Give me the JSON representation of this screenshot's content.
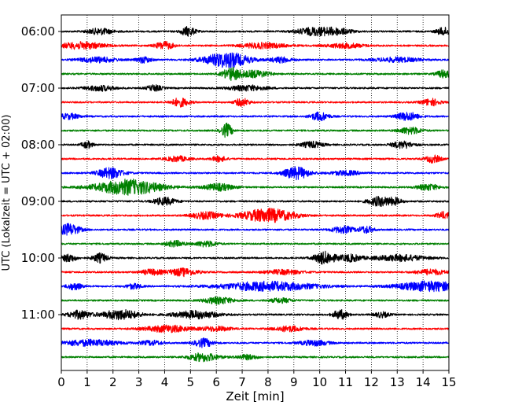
{
  "chart_data": {
    "type": "line",
    "title": "",
    "xlabel": "Zeit  [min]",
    "ylabel": "UTC (Lokalzeit = UTC + 02:00)",
    "xlim": [
      0,
      15
    ],
    "xticks": [
      0,
      1,
      2,
      3,
      4,
      5,
      6,
      7,
      8,
      9,
      10,
      11,
      12,
      13,
      14,
      15
    ],
    "xtick_labels": [
      "0",
      "1",
      "2",
      "3",
      "4",
      "5",
      "6",
      "7",
      "8",
      "9",
      "10",
      "11",
      "12",
      "13",
      "14",
      "15"
    ],
    "grid": "vertical dotted lines at each minute",
    "ytick_labels": [
      "06:00",
      "07:00",
      "08:00",
      "09:00",
      "10:00",
      "11:00"
    ],
    "trace_interval_min": 15,
    "trace_colors": [
      "#000000",
      "#ff0000",
      "#0000ff",
      "#008000"
    ],
    "traces": [
      {
        "start": "06:00",
        "color": "#000000",
        "bursts": [
          [
            1.5,
            0.4,
            0.35
          ],
          [
            4.9,
            0.6,
            0.2
          ],
          [
            9.8,
            0.5,
            0.5
          ],
          [
            10.7,
            0.35,
            0.4
          ],
          [
            14.8,
            0.5,
            0.2
          ]
        ]
      },
      {
        "start": "06:15",
        "color": "#ff0000",
        "bursts": [
          [
            0.8,
            0.45,
            0.6
          ],
          [
            4.0,
            0.5,
            0.25
          ],
          [
            7.8,
            0.35,
            0.6
          ],
          [
            11.0,
            0.3,
            0.5
          ]
        ]
      },
      {
        "start": "06:30",
        "color": "#0000ff",
        "bursts": [
          [
            1.4,
            0.35,
            0.5
          ],
          [
            3.2,
            0.4,
            0.2
          ],
          [
            6.4,
            1.0,
            0.6
          ],
          [
            8.5,
            0.35,
            0.3
          ],
          [
            13.0,
            0.3,
            0.6
          ]
        ]
      },
      {
        "start": "06:45",
        "color": "#008000",
        "bursts": [
          [
            6.6,
            0.8,
            0.25
          ],
          [
            7.5,
            0.45,
            0.4
          ],
          [
            14.8,
            0.5,
            0.2
          ]
        ]
      },
      {
        "start": "07:00",
        "color": "#000000",
        "bursts": [
          [
            1.5,
            0.35,
            0.4
          ],
          [
            3.6,
            0.4,
            0.2
          ],
          [
            7.2,
            0.35,
            0.5
          ]
        ]
      },
      {
        "start": "07:15",
        "color": "#ff0000",
        "bursts": [
          [
            4.6,
            0.55,
            0.25
          ],
          [
            7.0,
            0.5,
            0.2
          ],
          [
            14.3,
            0.45,
            0.25
          ]
        ]
      },
      {
        "start": "07:30",
        "color": "#0000ff",
        "bursts": [
          [
            0.3,
            0.35,
            0.3
          ],
          [
            10.0,
            0.55,
            0.25
          ],
          [
            13.4,
            0.55,
            0.3
          ]
        ]
      },
      {
        "start": "07:45",
        "color": "#008000",
        "bursts": [
          [
            6.4,
            0.9,
            0.15
          ],
          [
            13.5,
            0.45,
            0.3
          ]
        ]
      },
      {
        "start": "08:00",
        "color": "#000000",
        "bursts": [
          [
            1.0,
            0.45,
            0.15
          ],
          [
            9.7,
            0.4,
            0.3
          ],
          [
            13.2,
            0.45,
            0.3
          ]
        ]
      },
      {
        "start": "08:15",
        "color": "#ff0000",
        "bursts": [
          [
            4.5,
            0.35,
            0.3
          ],
          [
            6.1,
            0.35,
            0.2
          ],
          [
            14.4,
            0.5,
            0.2
          ]
        ]
      },
      {
        "start": "08:30",
        "color": "#0000ff",
        "bursts": [
          [
            1.9,
            0.7,
            0.35
          ],
          [
            9.1,
            0.8,
            0.35
          ],
          [
            11.0,
            0.3,
            0.4
          ]
        ]
      },
      {
        "start": "08:45",
        "color": "#008000",
        "bursts": [
          [
            2.6,
            1.0,
            0.9
          ],
          [
            6.1,
            0.45,
            0.4
          ],
          [
            14.2,
            0.4,
            0.3
          ]
        ]
      },
      {
        "start": "09:00",
        "color": "#000000",
        "bursts": [
          [
            4.0,
            0.5,
            0.3
          ],
          [
            12.3,
            0.6,
            0.3
          ],
          [
            12.9,
            0.4,
            0.2
          ]
        ]
      },
      {
        "start": "09:15",
        "color": "#ff0000",
        "bursts": [
          [
            5.6,
            0.45,
            0.4
          ],
          [
            8.0,
            0.9,
            0.7
          ],
          [
            14.8,
            0.45,
            0.2
          ]
        ]
      },
      {
        "start": "09:30",
        "color": "#0000ff",
        "bursts": [
          [
            0.3,
            0.75,
            0.3
          ],
          [
            10.9,
            0.45,
            0.3
          ],
          [
            11.8,
            0.45,
            0.2
          ]
        ]
      },
      {
        "start": "09:45",
        "color": "#008000",
        "bursts": [
          [
            4.4,
            0.4,
            0.25
          ],
          [
            5.6,
            0.35,
            0.3
          ]
        ]
      },
      {
        "start": "10:00",
        "color": "#000000",
        "bursts": [
          [
            0.3,
            0.5,
            0.2
          ],
          [
            1.5,
            0.6,
            0.2
          ],
          [
            10.2,
            0.8,
            0.3
          ],
          [
            11.2,
            0.45,
            0.3
          ],
          [
            13.1,
            0.4,
            0.7
          ]
        ]
      },
      {
        "start": "10:15",
        "color": "#ff0000",
        "bursts": [
          [
            3.5,
            0.35,
            0.3
          ],
          [
            4.7,
            0.5,
            0.4
          ],
          [
            8.6,
            0.3,
            0.5
          ],
          [
            14.3,
            0.35,
            0.4
          ]
        ]
      },
      {
        "start": "10:30",
        "color": "#0000ff",
        "bursts": [
          [
            0.5,
            0.45,
            0.2
          ],
          [
            2.8,
            0.35,
            0.2
          ],
          [
            8.0,
            0.6,
            1.3
          ],
          [
            14.3,
            0.65,
            0.9
          ]
        ]
      },
      {
        "start": "10:45",
        "color": "#008000",
        "bursts": [
          [
            6.1,
            0.45,
            0.4
          ],
          [
            8.5,
            0.3,
            0.3
          ]
        ]
      },
      {
        "start": "11:00",
        "color": "#000000",
        "bursts": [
          [
            0.7,
            0.55,
            0.3
          ],
          [
            2.3,
            0.65,
            0.5
          ],
          [
            5.2,
            0.5,
            0.6
          ],
          [
            10.8,
            0.6,
            0.2
          ],
          [
            12.4,
            0.35,
            0.2
          ]
        ]
      },
      {
        "start": "11:15",
        "color": "#ff0000",
        "bursts": [
          [
            4.1,
            0.45,
            0.6
          ],
          [
            6.0,
            0.3,
            0.4
          ],
          [
            8.8,
            0.35,
            0.4
          ]
        ]
      },
      {
        "start": "11:30",
        "color": "#0000ff",
        "bursts": [
          [
            1.1,
            0.4,
            0.8
          ],
          [
            3.5,
            0.3,
            0.3
          ],
          [
            5.5,
            0.55,
            0.25
          ],
          [
            9.8,
            0.35,
            0.4
          ]
        ]
      },
      {
        "start": "11:45",
        "color": "#008000",
        "bursts": [
          [
            5.5,
            0.55,
            0.4
          ],
          [
            7.2,
            0.3,
            0.3
          ]
        ]
      }
    ]
  }
}
